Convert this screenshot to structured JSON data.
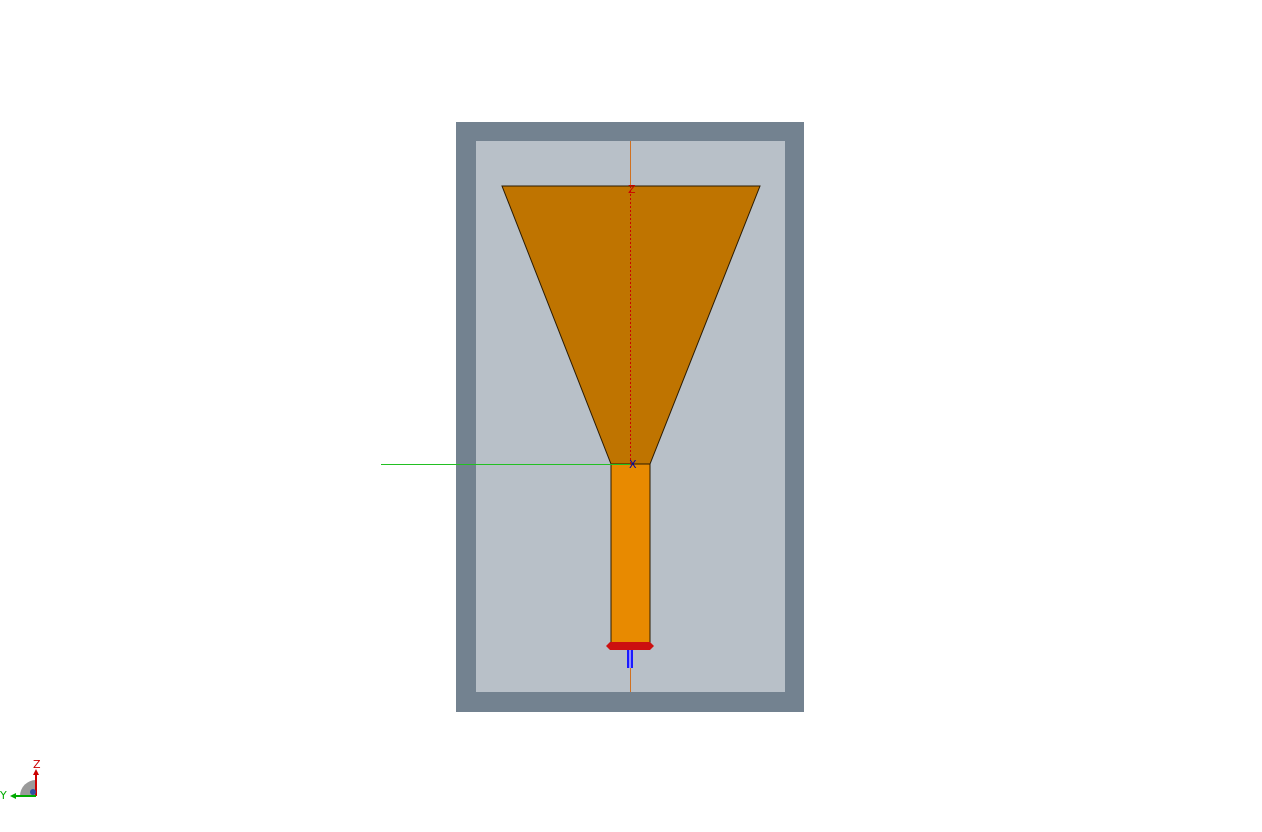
{
  "viewport": {
    "background": "#ffffff"
  },
  "model": {
    "substrate_border_color": "#738290",
    "substrate_fill_color": "#b8c0c8",
    "patch_color": "#bf7400",
    "feedline_color": "#e88a00",
    "outline_color": "#2a1a00",
    "port_color": "#cc1010",
    "port_pin_color": "#1a1aff"
  },
  "axes": {
    "z_label": "Z",
    "x_label": "X",
    "y_axis_color": "#22c022",
    "z_axis_color": "#d07020",
    "z_label_color": "#cc0000",
    "x_label_color": "#0000aa"
  },
  "orientation_widget": {
    "z_label": "Z",
    "y_label": "Y",
    "z_color": "#cc0000",
    "y_color": "#00aa00"
  }
}
